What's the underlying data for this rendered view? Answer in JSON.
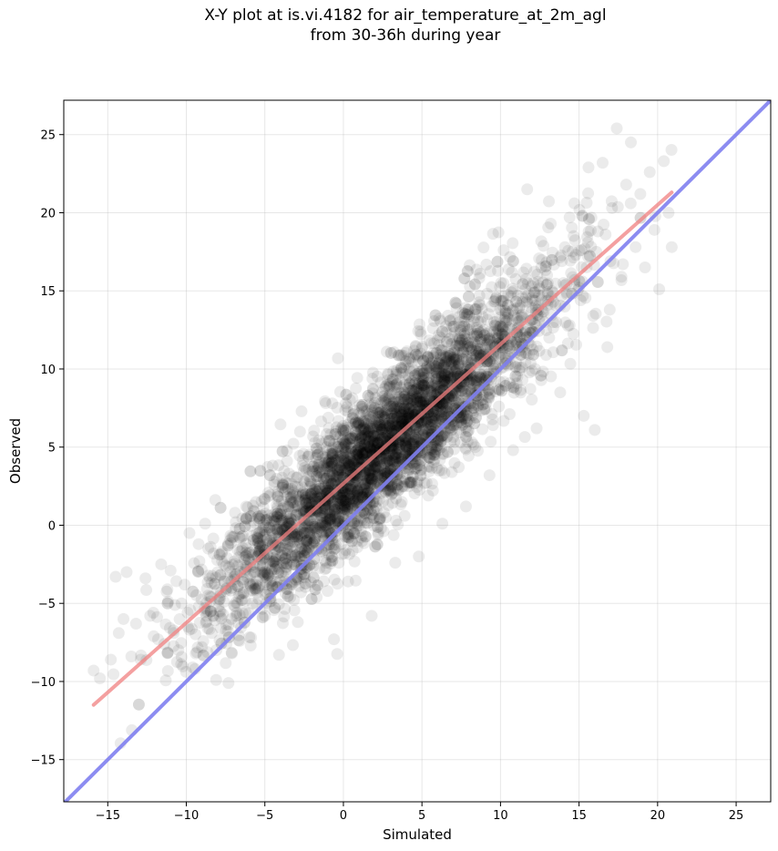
{
  "chart_data": {
    "type": "scatter",
    "title_line1": "X-Y plot at is.vi.4182 for air_temperature_at_2m_agl",
    "title_line2": "from 30-36h during year",
    "xlabel": "Simulated",
    "ylabel": "Observed",
    "xlim": [
      -17.8,
      27.2
    ],
    "ylim": [
      -17.7,
      27.2
    ],
    "xticks": [
      -15,
      -10,
      -5,
      0,
      5,
      10,
      15,
      20,
      25
    ],
    "yticks": [
      -15,
      -10,
      -5,
      0,
      5,
      10,
      15,
      20,
      25
    ],
    "xtick_labels": [
      "−15",
      "−10",
      "−5",
      "0",
      "5",
      "10",
      "15",
      "20",
      "25"
    ],
    "ytick_labels": [
      "−15",
      "−10",
      "−5",
      "0",
      "5",
      "10",
      "15",
      "20",
      "25"
    ],
    "grid": true,
    "point_color": "#000000",
    "point_alpha": 0.08,
    "fit_line": {
      "color": "#f08080",
      "x": [
        -15.9,
        20.9
      ],
      "y": [
        -11.5,
        21.3
      ]
    },
    "identity_line": {
      "color": "#8080f0",
      "x": [
        -17.8,
        27.2
      ],
      "y": [
        -17.8,
        27.2
      ]
    },
    "points": [
      [
        -15.9,
        -9.3
      ],
      [
        -15.5,
        -9.8
      ],
      [
        -14.8,
        -8.6
      ],
      [
        -14.5,
        -3.3
      ],
      [
        -14.3,
        -6.9
      ],
      [
        -13.8,
        -3.0
      ],
      [
        -13.2,
        -6.3
      ],
      [
        -12.9,
        -8.6
      ],
      [
        -12.6,
        -3.4
      ],
      [
        -12.1,
        -5.6
      ],
      [
        -11.8,
        -7.3
      ],
      [
        -11.6,
        -2.5
      ],
      [
        -11.2,
        -4.1
      ],
      [
        -10.8,
        -6.9
      ],
      [
        -10.5,
        -8.0
      ],
      [
        -10.1,
        -3.8
      ],
      [
        -9.8,
        -0.5
      ],
      [
        -9.6,
        -9.1
      ],
      [
        -9.2,
        -5.2
      ],
      [
        -8.8,
        0.1
      ],
      [
        -8.4,
        -3.7
      ],
      [
        -8.1,
        -9.9
      ],
      [
        -7.8,
        -6.6
      ],
      [
        -7.4,
        -2.1
      ],
      [
        -7.1,
        -8.2
      ],
      [
        -6.9,
        0.8
      ],
      [
        -6.5,
        -4.8
      ],
      [
        -6.2,
        -1.2
      ],
      [
        -5.9,
        -7.7
      ],
      [
        -5.6,
        -3.0
      ],
      [
        -5.3,
        0.4
      ],
      [
        -5.0,
        -5.8
      ],
      [
        -4.7,
        -2.3
      ],
      [
        -4.4,
        2.6
      ],
      [
        -4.1,
        -8.3
      ],
      [
        -3.8,
        -0.6
      ],
      [
        -3.5,
        -4.1
      ],
      [
        -3.2,
        1.9
      ],
      [
        -2.9,
        -6.2
      ],
      [
        -2.6,
        3.8
      ],
      [
        -2.3,
        -1.7
      ],
      [
        -2.0,
        0.9
      ],
      [
        -1.7,
        -4.6
      ],
      [
        -1.4,
        5.2
      ],
      [
        -1.1,
        -2.4
      ],
      [
        -0.8,
        2.3
      ],
      [
        -0.6,
        -7.3
      ],
      [
        -0.3,
        0.5
      ],
      [
        0.0,
        6.0
      ],
      [
        0.3,
        -3.6
      ],
      [
        0.6,
        3.1
      ],
      [
        0.9,
        -1.0
      ],
      [
        1.2,
        7.7
      ],
      [
        1.5,
        1.4
      ],
      [
        1.8,
        -5.8
      ],
      [
        2.1,
        4.6
      ],
      [
        2.4,
        -0.2
      ],
      [
        2.7,
        8.1
      ],
      [
        3.0,
        2.2
      ],
      [
        3.3,
        -2.4
      ],
      [
        3.6,
        6.3
      ],
      [
        3.9,
        0.6
      ],
      [
        4.2,
        10.7
      ],
      [
        4.5,
        3.9
      ],
      [
        4.8,
        -2.0
      ],
      [
        5.1,
        7.9
      ],
      [
        5.4,
        1.9
      ],
      [
        5.7,
        12.6
      ],
      [
        6.0,
        5.1
      ],
      [
        6.3,
        0.1
      ],
      [
        6.6,
        9.5
      ],
      [
        6.9,
        3.4
      ],
      [
        7.2,
        13.9
      ],
      [
        7.5,
        7.2
      ],
      [
        7.8,
        1.2
      ],
      [
        8.1,
        11.4
      ],
      [
        8.4,
        5.0
      ],
      [
        8.7,
        16.1
      ],
      [
        9.0,
        9.4
      ],
      [
        9.3,
        3.2
      ],
      [
        9.6,
        13.0
      ],
      [
        9.9,
        7.6
      ],
      [
        10.2,
        17.6
      ],
      [
        10.5,
        11.5
      ],
      [
        10.8,
        4.8
      ],
      [
        11.1,
        14.7
      ],
      [
        11.4,
        9.3
      ],
      [
        11.7,
        21.5
      ],
      [
        12.0,
        12.4
      ],
      [
        12.3,
        6.2
      ],
      [
        12.6,
        16.5
      ],
      [
        12.9,
        10.9
      ],
      [
        13.2,
        19.3
      ],
      [
        13.5,
        14.1
      ],
      [
        13.8,
        8.5
      ],
      [
        14.1,
        17.8
      ],
      [
        14.4,
        12.8
      ],
      [
        14.7,
        20.6
      ],
      [
        15.0,
        15.2
      ],
      [
        15.3,
        7.0
      ],
      [
        15.6,
        22.9
      ],
      [
        15.9,
        13.4
      ],
      [
        16.2,
        18.8
      ],
      [
        16.5,
        23.2
      ],
      [
        16.8,
        11.4
      ],
      [
        17.1,
        20.3
      ],
      [
        17.4,
        25.4
      ],
      [
        17.7,
        15.9
      ],
      [
        18.0,
        21.8
      ],
      [
        18.3,
        24.5
      ],
      [
        18.6,
        17.8
      ],
      [
        18.9,
        21.2
      ],
      [
        19.2,
        16.5
      ],
      [
        19.5,
        22.6
      ],
      [
        19.8,
        18.9
      ],
      [
        20.1,
        15.1
      ],
      [
        20.4,
        23.3
      ],
      [
        20.7,
        20.0
      ],
      [
        20.9,
        17.8
      ],
      [
        16.0,
        6.1
      ],
      [
        -13.5,
        -8.4
      ],
      [
        -12.3,
        -5.8
      ],
      [
        -11.0,
        -2.9
      ],
      [
        -9.9,
        -6.5
      ],
      [
        -8.6,
        -1.5
      ],
      [
        -7.6,
        -4.9
      ],
      [
        -6.6,
        -7.4
      ],
      [
        -5.7,
        0.2
      ],
      [
        -4.9,
        -4.3
      ],
      [
        -3.9,
        -2.4
      ],
      [
        -3.0,
        -0.5
      ],
      [
        -2.1,
        1.8
      ],
      [
        -1.2,
        -0.8
      ],
      [
        -0.4,
        3.6
      ],
      [
        0.4,
        1.7
      ],
      [
        1.3,
        4.9
      ],
      [
        2.2,
        3.2
      ],
      [
        3.1,
        6.1
      ],
      [
        4.0,
        5.1
      ],
      [
        4.9,
        8.2
      ],
      [
        5.8,
        7.0
      ],
      [
        6.7,
        9.8
      ],
      [
        7.6,
        8.9
      ],
      [
        8.5,
        12.1
      ],
      [
        9.4,
        10.7
      ],
      [
        10.3,
        13.3
      ],
      [
        11.2,
        12.8
      ],
      [
        12.1,
        15.5
      ],
      [
        13.0,
        14.1
      ],
      [
        13.9,
        16.9
      ],
      [
        -14.0,
        -6.0
      ],
      [
        -11.4,
        -7.6
      ],
      [
        -10.3,
        -5.0
      ],
      [
        -9.0,
        -7.8
      ],
      [
        -8.0,
        -3.0
      ],
      [
        -6.8,
        -5.6
      ],
      [
        -5.8,
        -1.9
      ],
      [
        -4.6,
        -3.6
      ],
      [
        -3.4,
        0.2
      ],
      [
        -2.4,
        -2.7
      ],
      [
        -1.5,
        2.5
      ],
      [
        -0.5,
        0.1
      ],
      [
        0.5,
        4.1
      ],
      [
        1.6,
        2.1
      ],
      [
        2.5,
        5.6
      ],
      [
        3.5,
        3.9
      ],
      [
        4.4,
        7.3
      ],
      [
        5.4,
        5.6
      ],
      [
        6.4,
        8.9
      ],
      [
        7.3,
        7.8
      ],
      [
        8.3,
        10.9
      ],
      [
        9.2,
        8.2
      ],
      [
        10.1,
        12.2
      ],
      [
        11.0,
        10.4
      ],
      [
        12.0,
        13.9
      ],
      [
        13.1,
        12.0
      ],
      [
        14.0,
        15.5
      ],
      [
        15.1,
        14.4
      ],
      [
        16.1,
        17.5
      ],
      [
        17.0,
        16.9
      ]
    ]
  }
}
